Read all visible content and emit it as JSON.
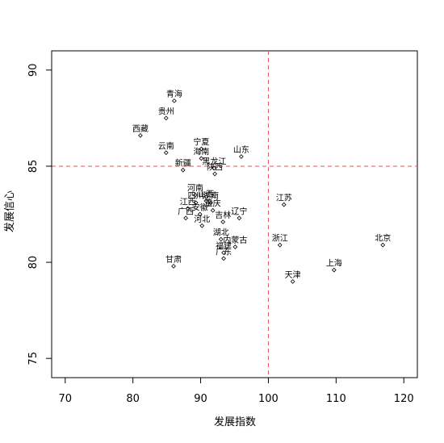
{
  "chart_data": {
    "type": "scatter",
    "title": "",
    "xlabel": "发展指数",
    "ylabel": "发展信心",
    "xlim": [
      68,
      122
    ],
    "ylim": [
      74,
      91
    ],
    "xticks": [
      70,
      80,
      90,
      100,
      110,
      120
    ],
    "yticks": [
      75,
      80,
      85,
      90
    ],
    "reference_lines": {
      "x": 100,
      "y": 85,
      "color": "#e8555a",
      "style": "dashed"
    },
    "grid": false,
    "marker": "open-diamond",
    "points": [
      {
        "label": "青海",
        "x": 86.1,
        "y": 88.4
      },
      {
        "label": "贵州",
        "x": 84.9,
        "y": 87.5
      },
      {
        "label": "西藏",
        "x": 81.1,
        "y": 86.6
      },
      {
        "label": "云南",
        "x": 84.9,
        "y": 85.7
      },
      {
        "label": "宁夏",
        "x": 90.1,
        "y": 85.9
      },
      {
        "label": "海南",
        "x": 90.1,
        "y": 85.4
      },
      {
        "label": "山东",
        "x": 96.0,
        "y": 85.5
      },
      {
        "label": "黑龙江",
        "x": 92.0,
        "y": 84.9
      },
      {
        "label": "新疆",
        "x": 87.4,
        "y": 84.8
      },
      {
        "label": "陕西",
        "x": 92.1,
        "y": 84.6
      },
      {
        "label": "河南",
        "x": 89.2,
        "y": 83.5
      },
      {
        "label": "山西",
        "x": 90.8,
        "y": 83.2
      },
      {
        "label": "四川",
        "x": 89.3,
        "y": 83.1
      },
      {
        "label": "湖南",
        "x": 91.5,
        "y": 83.1
      },
      {
        "label": "江苏",
        "x": 102.3,
        "y": 83.0
      },
      {
        "label": "江西",
        "x": 88.1,
        "y": 82.8
      },
      {
        "label": "安徽",
        "x": 89.9,
        "y": 82.5
      },
      {
        "label": "重庆",
        "x": 91.8,
        "y": 82.7
      },
      {
        "label": "广西",
        "x": 87.8,
        "y": 82.3
      },
      {
        "label": "吉林",
        "x": 93.3,
        "y": 82.1
      },
      {
        "label": "辽宁",
        "x": 95.7,
        "y": 82.3
      },
      {
        "label": "河北",
        "x": 90.2,
        "y": 81.9
      },
      {
        "label": "湖北",
        "x": 93.0,
        "y": 81.2
      },
      {
        "label": "浙江",
        "x": 101.7,
        "y": 80.9
      },
      {
        "label": "北京",
        "x": 116.9,
        "y": 80.9
      },
      {
        "label": "内蒙古",
        "x": 95.1,
        "y": 80.8
      },
      {
        "label": "福建",
        "x": 93.4,
        "y": 80.5
      },
      {
        "label": "广东",
        "x": 93.4,
        "y": 80.2
      },
      {
        "label": "甘肃",
        "x": 86.0,
        "y": 79.8
      },
      {
        "label": "上海",
        "x": 109.7,
        "y": 79.6
      },
      {
        "label": "天津",
        "x": 103.6,
        "y": 79.0
      }
    ]
  }
}
